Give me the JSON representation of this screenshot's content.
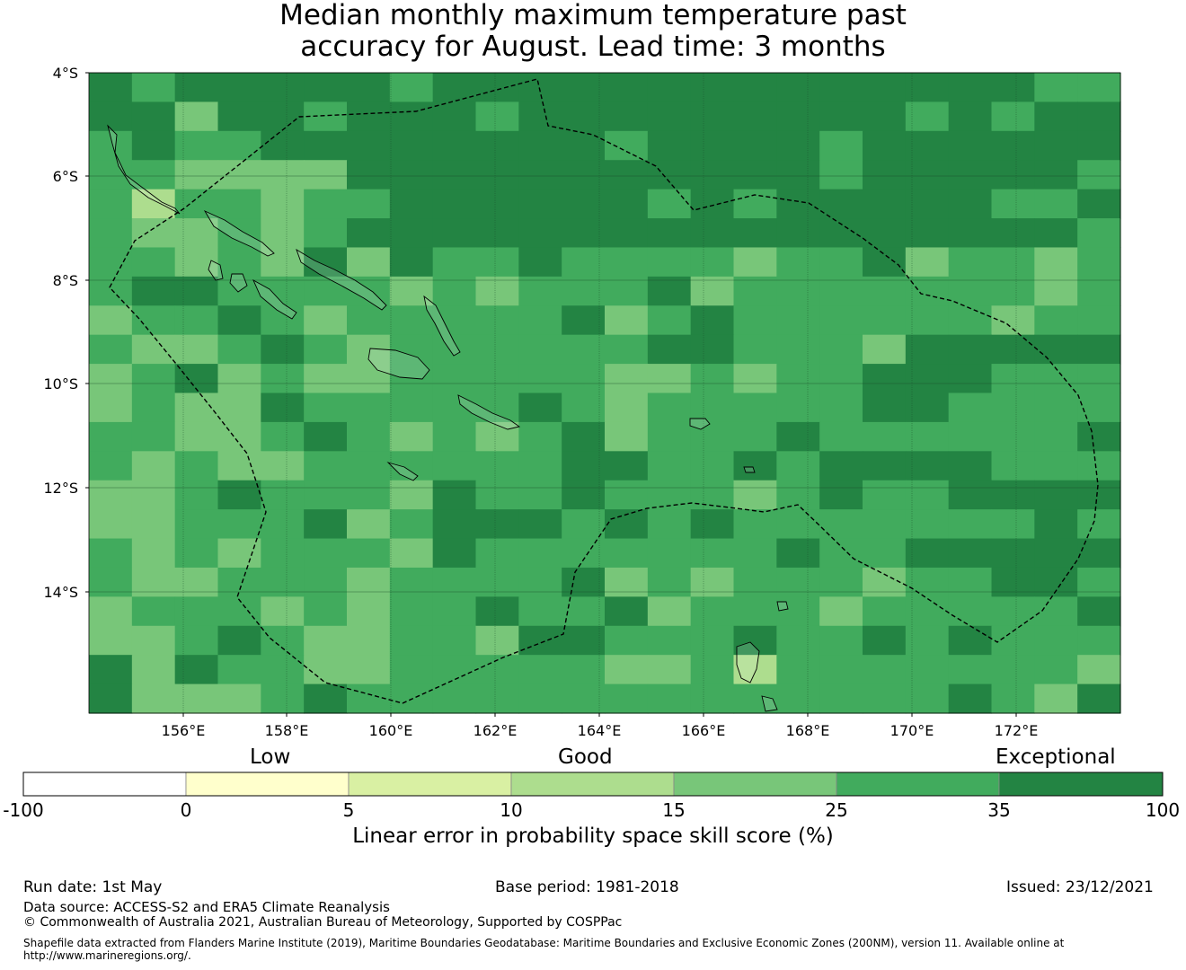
{
  "title_line1": "Median monthly maximum temperature past",
  "title_line2": "accuracy for August. Lead time: 3 months",
  "map": {
    "lon_range": [
      154.2,
      174.0
    ],
    "lat_range": [
      -16.3,
      -4.0
    ],
    "lat_ticks": [
      "4°S",
      "6°S",
      "8°S",
      "10°S",
      "12°S",
      "14°S"
    ],
    "lon_ticks": [
      "156°E",
      "158°E",
      "160°E",
      "162°E",
      "164°E",
      "166°E",
      "168°E",
      "170°E",
      "172°E"
    ],
    "land_color": "#ffffff",
    "eez_line": "dashed-black"
  },
  "categories": {
    "low": "Low",
    "good": "Good",
    "exceptional": "Exceptional"
  },
  "colorbar": {
    "ticks": [
      "-100",
      "0",
      "5",
      "10",
      "15",
      "25",
      "35",
      "100"
    ],
    "colors": [
      "#ffffff",
      "#ffffcc",
      "#d9f0a3",
      "#addd8e",
      "#78c679",
      "#41ab5d",
      "#238443"
    ],
    "label": "Linear error in probability space skill score (%)"
  },
  "footer": {
    "run_date": "Run date: 1st May",
    "base_period": "Base period: 1981-2018",
    "issued": "Issued: 23/12/2021",
    "data_source": "Data source: ACCESS-S2 and ERA5 Climate Reanalysis",
    "copyright": "© Commonwealth of Australia 2021, Australian Bureau of Meteorology, Supported by COSPPac",
    "shapefile": "Shapefile data extracted from Flanders Marine Institute (2019), Maritime Boundaries Geodatabase: Maritime Boundaries and Exclusive Economic Zones (200NM), version 11. Available online at http://www.marineregions.org/."
  }
}
